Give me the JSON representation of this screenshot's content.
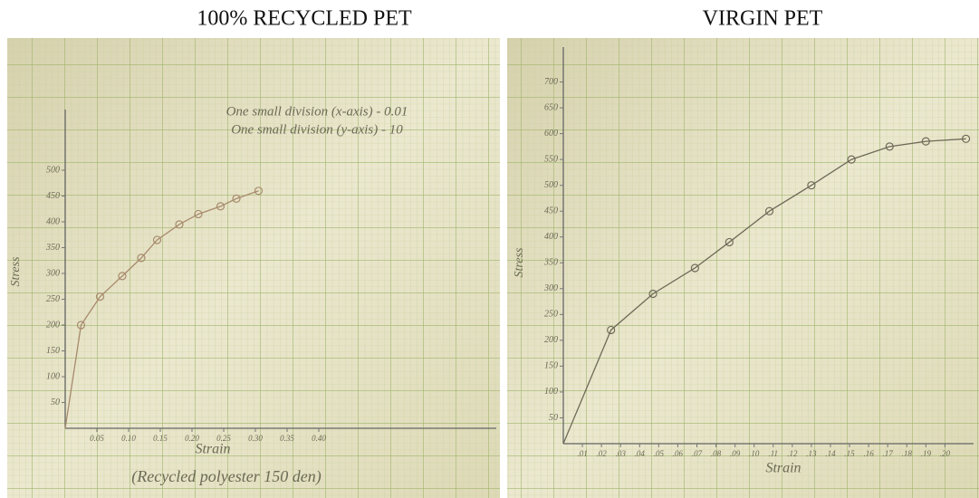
{
  "chart_data": [
    {
      "type": "line",
      "title": "100% RECYCLED PET",
      "x_label": "Strain",
      "y_label": "Stress",
      "annotations": [
        "One small division (x-axis) - 0.01",
        "One small division (y-axis) - 10"
      ],
      "caption": "(Recycled polyester 150 den)",
      "x": [
        0,
        0.025,
        0.055,
        0.09,
        0.12,
        0.145,
        0.18,
        0.21,
        0.245,
        0.27,
        0.305
      ],
      "series": [
        {
          "name": "Stress",
          "color": "#a88a6c",
          "values": [
            0,
            200,
            255,
            295,
            330,
            365,
            395,
            415,
            430,
            445,
            460
          ]
        }
      ],
      "xlim": [
        0,
        0.68
      ],
      "ylim": [
        0,
        600
      ],
      "xticks": [
        {
          "value": 0.05,
          "label": "0.05"
        },
        {
          "value": 0.1,
          "label": "0.10"
        },
        {
          "value": 0.15,
          "label": "0.15"
        },
        {
          "value": 0.2,
          "label": "0.20"
        },
        {
          "value": 0.25,
          "label": "0.25"
        },
        {
          "value": 0.3,
          "label": "0.30"
        },
        {
          "value": 0.35,
          "label": "0.35"
        },
        {
          "value": 0.4,
          "label": "0.40"
        }
      ],
      "yticks": [
        50,
        100,
        150,
        200,
        250,
        300,
        350,
        400,
        450,
        500
      ]
    },
    {
      "type": "line",
      "title": "VIRGIN PET",
      "x_label": "Strain",
      "y_label": "Stress",
      "x": [
        0,
        0.025,
        0.047,
        0.069,
        0.087,
        0.108,
        0.13,
        0.151,
        0.171,
        0.19,
        0.211
      ],
      "series": [
        {
          "name": "Stress",
          "color": "#6e6a58",
          "values": [
            0,
            220,
            290,
            340,
            390,
            450,
            500,
            550,
            575,
            585,
            590
          ]
        }
      ],
      "xlim": [
        0,
        0.215
      ],
      "ylim": [
        0,
        750
      ],
      "xticks": [
        {
          "value": 0.01,
          "label": ".01"
        },
        {
          "value": 0.02,
          "label": ".02"
        },
        {
          "value": 0.03,
          "label": ".03"
        },
        {
          "value": 0.04,
          "label": ".04"
        },
        {
          "value": 0.05,
          "label": ".05"
        },
        {
          "value": 0.06,
          "label": ".06"
        },
        {
          "value": 0.07,
          "label": ".07"
        },
        {
          "value": 0.08,
          "label": ".08"
        },
        {
          "value": 0.09,
          "label": ".09"
        },
        {
          "value": 0.1,
          "label": ".10"
        },
        {
          "value": 0.11,
          "label": ".11"
        },
        {
          "value": 0.12,
          "label": ".12"
        },
        {
          "value": 0.13,
          "label": ".13"
        },
        {
          "value": 0.14,
          "label": ".14"
        },
        {
          "value": 0.15,
          "label": ".15"
        },
        {
          "value": 0.16,
          "label": ".16"
        },
        {
          "value": 0.17,
          "label": ".17"
        },
        {
          "value": 0.18,
          "label": ".18"
        },
        {
          "value": 0.19,
          "label": ".19"
        },
        {
          "value": 0.2,
          "label": ".20"
        }
      ],
      "yticks": [
        50,
        100,
        150,
        200,
        250,
        300,
        350,
        400,
        450,
        500,
        550,
        600,
        650,
        700
      ]
    }
  ]
}
